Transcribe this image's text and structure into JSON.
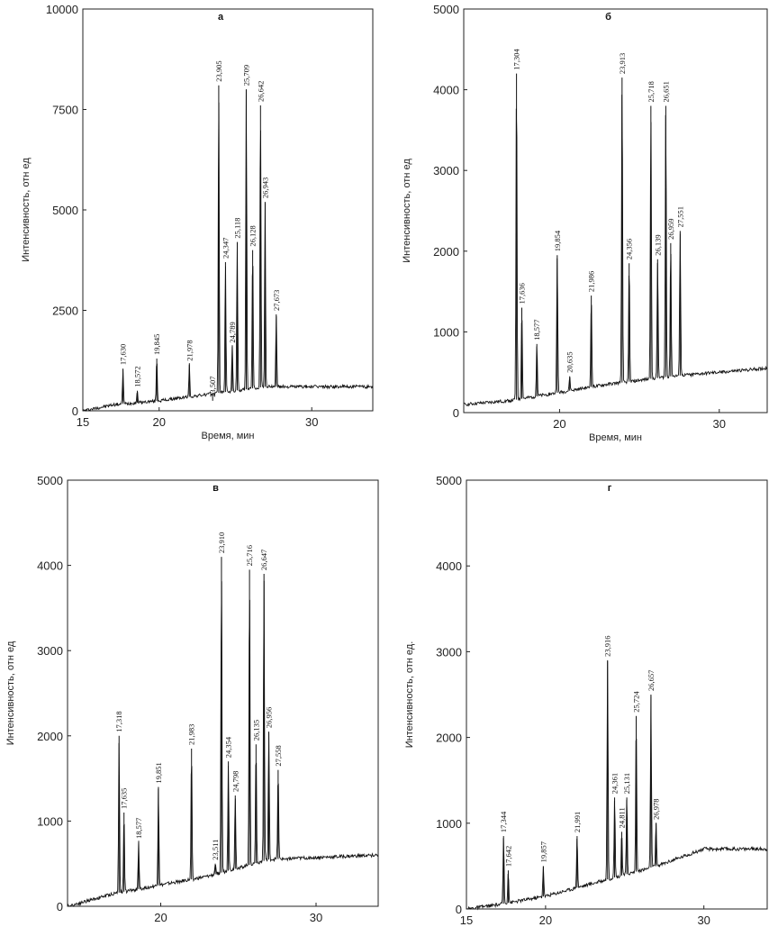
{
  "chart_data": [
    {
      "type": "line",
      "title": "а",
      "xlabel": "Время, мин",
      "ylabel": "Интенсивность, отн ед",
      "xlim": [
        15,
        34
      ],
      "ylim": [
        0,
        10000
      ],
      "xticks": [
        "15",
        "20",
        "30"
      ],
      "yticks": [
        "0",
        "2500",
        "5000",
        "7500",
        "10000"
      ],
      "peaks": [
        {
          "label": "17,630",
          "x": 17.63,
          "y": 1050
        },
        {
          "label": "18,572",
          "x": 18.572,
          "y": 500
        },
        {
          "label": "19,845",
          "x": 19.845,
          "y": 1300
        },
        {
          "label": "21,978",
          "x": 21.978,
          "y": 1150
        },
        {
          "label": "23,507",
          "x": 23.507,
          "y": 250
        },
        {
          "label": "23,905",
          "x": 23.905,
          "y": 8100
        },
        {
          "label": "24,347",
          "x": 24.347,
          "y": 3700
        },
        {
          "label": "24,789",
          "x": 24.789,
          "y": 1600
        },
        {
          "label": "25,118",
          "x": 25.118,
          "y": 4200
        },
        {
          "label": "25,709",
          "x": 25.709,
          "y": 8000
        },
        {
          "label": "26,128",
          "x": 26.128,
          "y": 4000
        },
        {
          "label": "26,642",
          "x": 26.642,
          "y": 7600
        },
        {
          "label": "26,943",
          "x": 26.943,
          "y": 5200
        },
        {
          "label": "27,673",
          "x": 27.673,
          "y": 2400
        }
      ],
      "baseline": [
        [
          15,
          0
        ],
        [
          17,
          150
        ],
        [
          20,
          250
        ],
        [
          23,
          400
        ],
        [
          27,
          600
        ],
        [
          34,
          600
        ]
      ]
    },
    {
      "type": "line",
      "title": "б",
      "xlabel": "Время, мин",
      "ylabel": "Интенсивность, отн ед",
      "xlim": [
        14,
        33
      ],
      "ylim": [
        0,
        5000
      ],
      "xticks": [
        "20",
        "30"
      ],
      "yticks": [
        "0",
        "1000",
        "2000",
        "3000",
        "4000",
        "5000"
      ],
      "peaks": [
        {
          "label": "17,304",
          "x": 17.304,
          "y": 4200
        },
        {
          "label": "17,636",
          "x": 17.636,
          "y": 1300
        },
        {
          "label": "18,577",
          "x": 18.577,
          "y": 850
        },
        {
          "label": "19,854",
          "x": 19.854,
          "y": 1950
        },
        {
          "label": "20,635",
          "x": 20.635,
          "y": 450
        },
        {
          "label": "21,986",
          "x": 21.986,
          "y": 1450
        },
        {
          "label": "23,913",
          "x": 23.913,
          "y": 4150
        },
        {
          "label": "24,356",
          "x": 24.356,
          "y": 1850
        },
        {
          "label": "25,718",
          "x": 25.718,
          "y": 3800
        },
        {
          "label": "26,139",
          "x": 26.139,
          "y": 1900
        },
        {
          "label": "26,651",
          "x": 26.651,
          "y": 3800
        },
        {
          "label": "26,959",
          "x": 26.959,
          "y": 2100
        },
        {
          "label": "27,551",
          "x": 27.551,
          "y": 2250
        }
      ],
      "baseline": [
        [
          14,
          100
        ],
        [
          17,
          150
        ],
        [
          20,
          250
        ],
        [
          23,
          350
        ],
        [
          27,
          450
        ],
        [
          33,
          550
        ]
      ]
    },
    {
      "type": "line",
      "title": "в",
      "xlabel": "Время, мин",
      "ylabel": "Интенсивность, отн ед",
      "xlim": [
        14,
        34
      ],
      "ylim": [
        0,
        5000
      ],
      "xticks": [
        "20",
        "30"
      ],
      "yticks": [
        "0",
        "1000",
        "2000",
        "3000",
        "4000",
        "5000"
      ],
      "peaks": [
        {
          "label": "17,318",
          "x": 17.318,
          "y": 2000
        },
        {
          "label": "17,635",
          "x": 17.635,
          "y": 1100
        },
        {
          "label": "18,577",
          "x": 18.577,
          "y": 750
        },
        {
          "label": "19,851",
          "x": 19.851,
          "y": 1400
        },
        {
          "label": "21,983",
          "x": 21.983,
          "y": 1850
        },
        {
          "label": "23,511",
          "x": 23.511,
          "y": 500
        },
        {
          "label": "23,910",
          "x": 23.91,
          "y": 4100
        },
        {
          "label": "24,354",
          "x": 24.354,
          "y": 1700
        },
        {
          "label": "24,798",
          "x": 24.798,
          "y": 1300
        },
        {
          "label": "25,716",
          "x": 25.716,
          "y": 3950
        },
        {
          "label": "26,135",
          "x": 26.135,
          "y": 1900
        },
        {
          "label": "26,647",
          "x": 26.647,
          "y": 3900
        },
        {
          "label": "26,956",
          "x": 26.956,
          "y": 2050
        },
        {
          "label": "27,558",
          "x": 27.558,
          "y": 1600
        }
      ],
      "baseline": [
        [
          14,
          0
        ],
        [
          17,
          150
        ],
        [
          20,
          250
        ],
        [
          23,
          350
        ],
        [
          27,
          550
        ],
        [
          34,
          600
        ]
      ]
    },
    {
      "type": "line",
      "title": "г",
      "xlabel": "Время, мин",
      "ylabel": "Интенсивность, отн ед.",
      "xlim": [
        15,
        34
      ],
      "ylim": [
        0,
        5000
      ],
      "xticks": [
        "15",
        "20",
        "30"
      ],
      "yticks": [
        "0",
        "1000",
        "2000",
        "3000",
        "4000",
        "5000"
      ],
      "peaks": [
        {
          "label": "17,344",
          "x": 17.344,
          "y": 850
        },
        {
          "label": "17,642",
          "x": 17.642,
          "y": 450
        },
        {
          "label": "19,857",
          "x": 19.857,
          "y": 500
        },
        {
          "label": "21,991",
          "x": 21.991,
          "y": 850
        },
        {
          "label": "23,916",
          "x": 23.916,
          "y": 2900
        },
        {
          "label": "24,361",
          "x": 24.361,
          "y": 1300
        },
        {
          "label": "24,811",
          "x": 24.811,
          "y": 900
        },
        {
          "label": "25,131",
          "x": 25.131,
          "y": 1300
        },
        {
          "label": "25,724",
          "x": 25.724,
          "y": 2250
        },
        {
          "label": "26,657",
          "x": 26.657,
          "y": 2500
        },
        {
          "label": "26,978",
          "x": 26.978,
          "y": 1000
        }
      ],
      "baseline": [
        [
          15,
          0
        ],
        [
          17,
          50
        ],
        [
          20,
          150
        ],
        [
          23,
          300
        ],
        [
          27,
          500
        ],
        [
          30,
          700
        ],
        [
          34,
          700
        ]
      ]
    }
  ]
}
